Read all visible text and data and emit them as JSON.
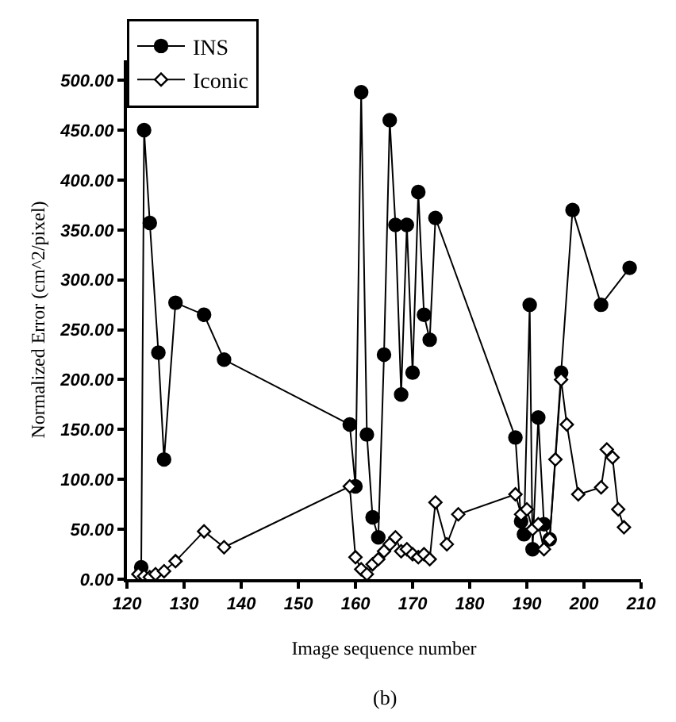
{
  "chart_data": {
    "type": "line",
    "xlabel": "Image sequence number",
    "ylabel": "Normalized Error (cm^2/pixel)",
    "annotations": [
      "(b)"
    ],
    "xlim": [
      120,
      210
    ],
    "xticks": [
      120,
      130,
      140,
      150,
      160,
      170,
      180,
      190,
      200,
      210
    ],
    "ylim": [
      0,
      520
    ],
    "yticks": [
      {
        "value": 0,
        "label": "0.00"
      },
      {
        "value": 50,
        "label": "50.00"
      },
      {
        "value": 100,
        "label": "100.00"
      },
      {
        "value": 150,
        "label": "150.00"
      },
      {
        "value": 200,
        "label": "200.00"
      },
      {
        "value": 250,
        "label": "250.00"
      },
      {
        "value": 300,
        "label": "300.00"
      },
      {
        "value": 350,
        "label": "350.00"
      },
      {
        "value": 400,
        "label": "400.00"
      },
      {
        "value": 450,
        "label": "450.00"
      },
      {
        "value": 500,
        "label": "500.00"
      }
    ],
    "legend": "top left",
    "series": [
      {
        "name": "INS",
        "color": "#000000",
        "marker": "circle",
        "x": [
          122.5,
          123,
          124,
          125.5,
          126.5,
          128.5,
          133.5,
          137,
          159,
          160,
          161,
          162,
          163,
          164,
          165,
          166,
          167,
          168,
          169,
          170,
          171,
          172,
          173,
          174,
          188,
          189,
          189.5,
          190.5,
          191,
          192,
          193,
          194,
          196,
          198,
          203,
          208
        ],
        "values": [
          12,
          450,
          357,
          227,
          120,
          277,
          265,
          220,
          155,
          93,
          488,
          145,
          62,
          42,
          225,
          460,
          355,
          185,
          355,
          207,
          388,
          265,
          240,
          362,
          142,
          58,
          45,
          275,
          30,
          162,
          55,
          40,
          207,
          370,
          275,
          312
        ]
      },
      {
        "name": "Iconic",
        "color": "#000000",
        "marker": "diamond",
        "x": [
          122,
          123,
          124,
          125,
          126.5,
          128.5,
          133.5,
          137,
          159,
          160,
          161,
          162,
          163,
          164,
          165,
          166,
          167,
          168,
          169,
          170,
          171,
          172,
          173,
          174,
          176,
          178,
          188,
          189,
          190,
          191,
          192,
          193,
          194,
          195,
          196,
          197,
          199,
          203,
          204,
          205,
          206,
          207
        ],
        "values": [
          5,
          3,
          2,
          5,
          8,
          18,
          48,
          32,
          93,
          22,
          10,
          5,
          15,
          20,
          28,
          35,
          42,
          28,
          30,
          25,
          22,
          25,
          20,
          77,
          35,
          65,
          85,
          65,
          70,
          50,
          55,
          30,
          40,
          120,
          200,
          155,
          85,
          92,
          130,
          122,
          70,
          52
        ]
      }
    ]
  }
}
